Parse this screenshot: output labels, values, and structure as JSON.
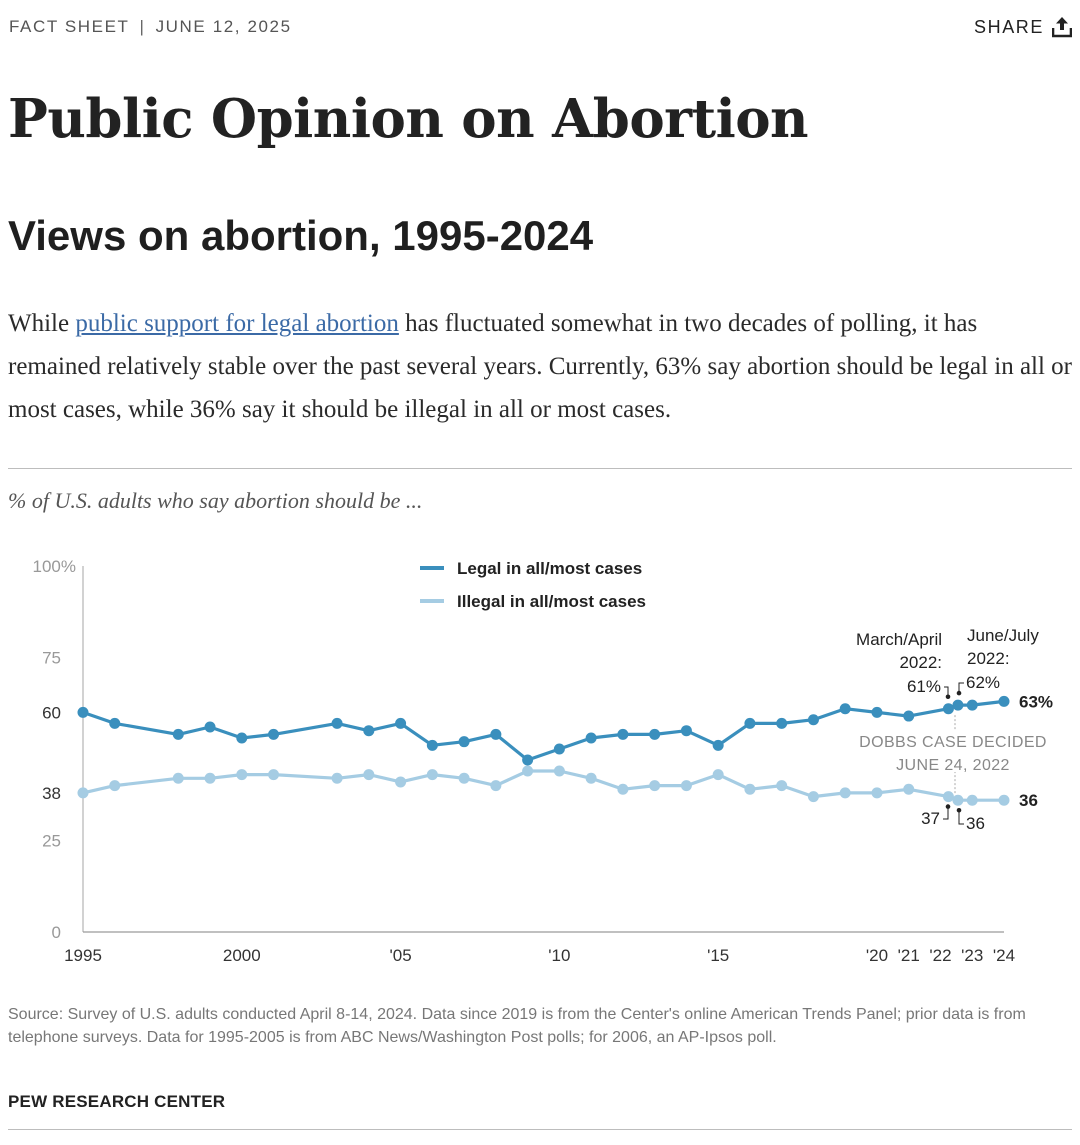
{
  "header": {
    "kicker": "FACT SHEET",
    "separator": "|",
    "date": "JUNE 12, 2025",
    "share_label": "SHARE",
    "share_icon": "share-upload-icon"
  },
  "title": "Public Opinion on Abortion",
  "section_title": "Views on abortion, 1995-2024",
  "intro": {
    "before_link": "While ",
    "link_text": "public support for legal abortion",
    "after_link": " has fluctuated somewhat in two decades of polling, it has remained relatively stable over the past several years. Currently, 63% say abortion should be legal in all or most cases, while 36% say it should be illegal in all or most cases."
  },
  "chart_subtitle": "% of U.S. adults who say abortion should be ...",
  "chart_data": {
    "type": "line",
    "title": "",
    "xlabel": "",
    "ylabel": "",
    "ylim": [
      0,
      100
    ],
    "xlim": [
      1995,
      2024
    ],
    "y_ticks": [
      {
        "value": 0,
        "label": "0"
      },
      {
        "value": 25,
        "label": "25"
      },
      {
        "value": 38,
        "label": "38"
      },
      {
        "value": 60,
        "label": "60"
      },
      {
        "value": 75,
        "label": "75"
      },
      {
        "value": 100,
        "label": "100%"
      }
    ],
    "x_ticks": [
      {
        "value": 1995,
        "label": "1995"
      },
      {
        "value": 2000,
        "label": "2000"
      },
      {
        "value": 2005,
        "label": "'05"
      },
      {
        "value": 2010,
        "label": "'10"
      },
      {
        "value": 2015,
        "label": "'15"
      },
      {
        "value": 2020,
        "label": "'20"
      },
      {
        "value": 2021,
        "label": "'21"
      },
      {
        "value": 2022,
        "label": "'22"
      },
      {
        "value": 2023,
        "label": "'23"
      },
      {
        "value": 2024,
        "label": "'24"
      }
    ],
    "grid": false,
    "legend_position": "top-center",
    "series": [
      {
        "name": "Legal in all/most cases",
        "color": "#3a8fbd",
        "end_label": "63%",
        "x": [
          1995,
          1996,
          1998,
          1999,
          2000,
          2001,
          2003,
          2004,
          2005,
          2006,
          2007,
          2008,
          2009,
          2010,
          2011,
          2012,
          2013,
          2014,
          2015,
          2016,
          2017,
          2018,
          2019,
          2020,
          2021,
          2022.25,
          2022.55,
          2023,
          2024
        ],
        "values": [
          60,
          57,
          54,
          56,
          53,
          54,
          57,
          55,
          57,
          51,
          52,
          54,
          47,
          50,
          53,
          54,
          54,
          55,
          51,
          57,
          57,
          58,
          61,
          60,
          59,
          61,
          62,
          62,
          63
        ]
      },
      {
        "name": "Illegal in all/most cases",
        "color": "#a5cce3",
        "end_label": "36",
        "x": [
          1995,
          1996,
          1998,
          1999,
          2000,
          2001,
          2003,
          2004,
          2005,
          2006,
          2007,
          2008,
          2009,
          2010,
          2011,
          2012,
          2013,
          2014,
          2015,
          2016,
          2017,
          2018,
          2019,
          2020,
          2021,
          2022.25,
          2022.55,
          2023,
          2024
        ],
        "values": [
          38,
          40,
          42,
          42,
          43,
          43,
          42,
          43,
          41,
          43,
          42,
          40,
          44,
          44,
          42,
          39,
          40,
          40,
          43,
          39,
          40,
          37,
          38,
          38,
          39,
          37,
          36,
          36,
          36
        ]
      }
    ],
    "annotations": {
      "march_april_2022": {
        "lines": [
          "March/April",
          "2022:"
        ],
        "legal_value": "61%",
        "illegal_value": "37"
      },
      "june_july_2022": {
        "lines": [
          "June/July",
          "2022:"
        ],
        "legal_value": "62%",
        "illegal_value": "36"
      },
      "dobbs": {
        "lines": [
          "DOBBS CASE DECIDED",
          "JUNE 24, 2022"
        ]
      }
    }
  },
  "source": "Source: Survey of U.S. adults conducted April 8-14, 2024. Data since 2019 is from the Center's online American Trends Panel; prior data is from telephone surveys. Data for 1995-2005 is from ABC News/Washington Post polls; for 2006, an AP-Ipsos poll.",
  "brand": "PEW RESEARCH CENTER"
}
